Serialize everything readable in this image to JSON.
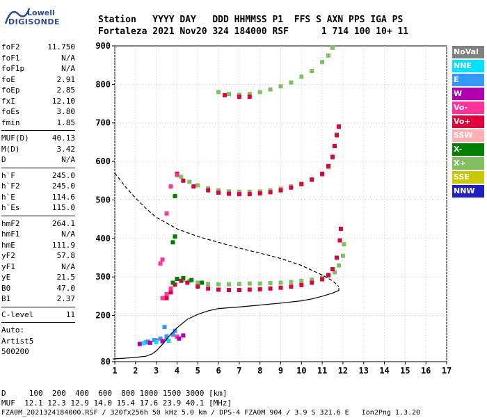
{
  "logo": {
    "line1": "Lowell",
    "line2": "DIGISONDE"
  },
  "header": {
    "row1": "Station   YYYY DAY   DDD HHMMSS P1  FFS S AXN PPS IGA PS",
    "row2": "Fortaleza 2021 Nov20 324 184000 RSF      1 714 100 10+ 11"
  },
  "params": {
    "group1": [
      {
        "name": "foF2",
        "value": "11.750"
      },
      {
        "name": "foF1",
        "value": "N/A"
      },
      {
        "name": "foF1p",
        "value": "N/A"
      },
      {
        "name": "foE",
        "value": "2.91"
      },
      {
        "name": "foEp",
        "value": "2.85"
      },
      {
        "name": "fxI",
        "value": "12.10"
      },
      {
        "name": "foEs",
        "value": "3.80"
      },
      {
        "name": "fmin",
        "value": "1.85"
      }
    ],
    "group2": [
      {
        "name": "MUF(D)",
        "value": "40.13"
      },
      {
        "name": "M(D)",
        "value": "3.42"
      },
      {
        "name": "D",
        "value": "N/A"
      }
    ],
    "group3": [
      {
        "name": "h`F",
        "value": "245.0"
      },
      {
        "name": "h`F2",
        "value": "245.0"
      },
      {
        "name": "h`E",
        "value": "114.6"
      },
      {
        "name": "h`Es",
        "value": "115.0"
      }
    ],
    "group4": [
      {
        "name": "hmF2",
        "value": "264.1"
      },
      {
        "name": "hmF1",
        "value": "N/A"
      },
      {
        "name": "hmE",
        "value": "111.9"
      },
      {
        "name": "yF2",
        "value": "57.8"
      },
      {
        "name": "yF1",
        "value": "N/A"
      },
      {
        "name": "yE",
        "value": "21.5"
      },
      {
        "name": "B0",
        "value": "47.0"
      },
      {
        "name": "B1",
        "value": "2.37"
      }
    ],
    "group5": [
      {
        "name": "C-level",
        "value": "11"
      }
    ],
    "auto": [
      "Auto:",
      "Artist5",
      "500200"
    ]
  },
  "legend": [
    {
      "label": "NoVal",
      "color": "#808080",
      "text_color": "#ffffff"
    },
    {
      "label": "NNE",
      "color": "#00e0ff",
      "text_color": "#ffffff"
    },
    {
      "label": "E",
      "color": "#3399ff",
      "text_color": "#ffffff"
    },
    {
      "label": "W",
      "color": "#b000b0",
      "text_color": "#ffffff"
    },
    {
      "label": "Vo-",
      "color": "#ff3399",
      "text_color": "#ffffff"
    },
    {
      "label": "Vo+",
      "color": "#e0003c",
      "text_color": "#ffffff"
    },
    {
      "label": "SSW",
      "color": "#ffb0b0",
      "text_color": "#ffffff"
    },
    {
      "label": "X-",
      "color": "#008000",
      "text_color": "#ffffff"
    },
    {
      "label": "X+",
      "color": "#80c060",
      "text_color": "#ffffff"
    },
    {
      "label": "SSE",
      "color": "#c8c800",
      "text_color": "#ffffff"
    },
    {
      "label": "NNW",
      "color": "#2020c0",
      "text_color": "#ffffff"
    }
  ],
  "footer": {
    "line1": "D     100  200  400  600  800 1000 1500 3000 [km]",
    "line2": "MUF  12.1 12.3 12.9 14.0 15.4 17.6 23.9 40.1 [MHz]",
    "line3": "FZA0M_2021324184000.RSF / 320fx256h 50 kHz 5.0 km / DPS-4 FZA0M 904 / 3.9 S 321.6 E   Ion2Png 1.3.20"
  },
  "chart_data": {
    "type": "scatter",
    "xlim": [
      1,
      17
    ],
    "ylim": [
      80,
      900
    ],
    "x_ticks": [
      1,
      2,
      3,
      4,
      5,
      6,
      7,
      8,
      9,
      10,
      11,
      12,
      13,
      14,
      15,
      16,
      17
    ],
    "y_ticks": [
      80,
      200,
      300,
      400,
      500,
      600,
      700,
      800,
      900
    ],
    "grid": true,
    "series": [
      {
        "name": "X+",
        "color": "#80c060",
        "points": [
          [
            4.3,
            293
          ],
          [
            4.6,
            290
          ],
          [
            5,
            285
          ],
          [
            5.5,
            282
          ],
          [
            6,
            281
          ],
          [
            6.5,
            281
          ],
          [
            7,
            282
          ],
          [
            7.5,
            283
          ],
          [
            8,
            283
          ],
          [
            8.5,
            284
          ],
          [
            9,
            285
          ],
          [
            9.5,
            287
          ],
          [
            10,
            290
          ],
          [
            10.5,
            293
          ],
          [
            11,
            298
          ],
          [
            11.3,
            303
          ],
          [
            11.6,
            312
          ],
          [
            11.8,
            330
          ],
          [
            12,
            355
          ],
          [
            12.05,
            385
          ],
          [
            4.2,
            560
          ],
          [
            4.6,
            547
          ],
          [
            5,
            538
          ],
          [
            5.5,
            530
          ],
          [
            6,
            525
          ],
          [
            6.5,
            522
          ],
          [
            7,
            521
          ],
          [
            7.5,
            521
          ],
          [
            8,
            522
          ],
          [
            8.5,
            525
          ],
          [
            9,
            529
          ],
          [
            9.5,
            535
          ],
          [
            10,
            542
          ],
          [
            10.5,
            552
          ],
          [
            11,
            566
          ],
          [
            11.3,
            585
          ],
          [
            11.5,
            610
          ],
          [
            11.6,
            640
          ],
          [
            11.7,
            670
          ],
          [
            11.8,
            692
          ],
          [
            6,
            780
          ],
          [
            6.5,
            775
          ],
          [
            7,
            773
          ],
          [
            7.5,
            775
          ],
          [
            8,
            780
          ],
          [
            8.5,
            787
          ],
          [
            9,
            795
          ],
          [
            9.5,
            805
          ],
          [
            10,
            820
          ],
          [
            10.5,
            835
          ],
          [
            11,
            858
          ],
          [
            11.3,
            875
          ],
          [
            11.5,
            895
          ]
        ]
      },
      {
        "name": "Vo+",
        "color": "#e0003c",
        "points": [
          [
            3.5,
            245
          ],
          [
            3.7,
            260
          ],
          [
            3.9,
            280
          ],
          [
            4.2,
            290
          ],
          [
            4.5,
            285
          ],
          [
            5,
            275
          ],
          [
            5.5,
            270
          ],
          [
            6,
            267
          ],
          [
            6.5,
            266
          ],
          [
            7,
            266
          ],
          [
            7.5,
            267
          ],
          [
            8,
            268
          ],
          [
            8.5,
            270
          ],
          [
            9,
            272
          ],
          [
            9.5,
            275
          ],
          [
            10,
            279
          ],
          [
            10.5,
            285
          ],
          [
            11,
            294
          ],
          [
            11.3,
            305
          ],
          [
            11.5,
            320
          ],
          [
            11.7,
            350
          ],
          [
            11.85,
            395
          ],
          [
            11.9,
            425
          ],
          [
            4,
            568
          ],
          [
            4.3,
            550
          ],
          [
            4.8,
            535
          ],
          [
            5.5,
            525
          ],
          [
            6,
            519
          ],
          [
            6.5,
            516
          ],
          [
            7,
            515
          ],
          [
            7.5,
            515
          ],
          [
            8,
            517
          ],
          [
            8.5,
            520
          ],
          [
            9,
            525
          ],
          [
            9.5,
            532
          ],
          [
            10,
            541
          ],
          [
            10.5,
            553
          ],
          [
            11,
            568
          ],
          [
            11.3,
            588
          ],
          [
            11.5,
            612
          ],
          [
            11.6,
            640
          ],
          [
            11.7,
            668
          ],
          [
            11.8,
            690
          ],
          [
            6.3,
            772
          ],
          [
            7,
            768
          ],
          [
            7.5,
            768
          ]
        ]
      },
      {
        "name": "X-",
        "color": "#008000",
        "points": [
          [
            3.8,
            285
          ],
          [
            4,
            295
          ],
          [
            4.3,
            297
          ],
          [
            4.7,
            292
          ],
          [
            5.2,
            285
          ],
          [
            3.9,
            405
          ],
          [
            3.8,
            390
          ],
          [
            3.9,
            510
          ]
        ]
      },
      {
        "name": "Vo-",
        "color": "#ff3399",
        "points": [
          [
            3.3,
            245
          ],
          [
            3.5,
            255
          ],
          [
            3.7,
            270
          ],
          [
            4,
            565
          ],
          [
            3.7,
            535
          ],
          [
            3.5,
            465
          ],
          [
            3.3,
            345
          ],
          [
            3.2,
            335
          ],
          [
            2.5,
            130
          ],
          [
            3,
            135
          ],
          [
            3.5,
            140
          ],
          [
            4,
            145
          ]
        ]
      },
      {
        "name": "E",
        "color": "#3399ff",
        "points": [
          [
            2.6,
            132
          ],
          [
            2.9,
            136
          ],
          [
            3.2,
            140
          ],
          [
            3.5,
            146
          ],
          [
            3.8,
            150
          ],
          [
            3.4,
            170
          ],
          [
            3.9,
            160
          ]
        ]
      },
      {
        "name": "NNE",
        "color": "#00e0ff",
        "points": [
          [
            2.4,
            128
          ],
          [
            3,
            131
          ],
          [
            3.6,
            134
          ]
        ]
      },
      {
        "name": "W",
        "color": "#b000b0",
        "points": [
          [
            2.2,
            126
          ],
          [
            2.7,
            129
          ],
          [
            3.3,
            133
          ],
          [
            4.1,
            140
          ],
          [
            4.3,
            148
          ]
        ]
      }
    ],
    "profile": [
      [
        0.9,
        87
      ],
      [
        1.5,
        89
      ],
      [
        2,
        91
      ],
      [
        2.5,
        94
      ],
      [
        2.8,
        100
      ],
      [
        3,
        108
      ],
      [
        3.3,
        125
      ],
      [
        3.6,
        145
      ],
      [
        4,
        168
      ],
      [
        4.5,
        190
      ],
      [
        5,
        203
      ],
      [
        5.5,
        212
      ],
      [
        6,
        218
      ],
      [
        7,
        222
      ],
      [
        8,
        227
      ],
      [
        9,
        232
      ],
      [
        10,
        238
      ],
      [
        10.5,
        243
      ],
      [
        11,
        250
      ],
      [
        11.5,
        258
      ],
      [
        11.8,
        265
      ],
      [
        11.8,
        271
      ]
    ],
    "trace_ionogram": [
      [
        1,
        570
      ],
      [
        1.5,
        535
      ],
      [
        2,
        505
      ],
      [
        2.5,
        478
      ],
      [
        3,
        455
      ],
      [
        3.5,
        440
      ],
      [
        4,
        425
      ],
      [
        5,
        405
      ],
      [
        6,
        390
      ],
      [
        7,
        375
      ],
      [
        8,
        362
      ],
      [
        9,
        348
      ],
      [
        10,
        330
      ],
      [
        11,
        305
      ],
      [
        11.5,
        290
      ],
      [
        11.8,
        275
      ]
    ]
  }
}
